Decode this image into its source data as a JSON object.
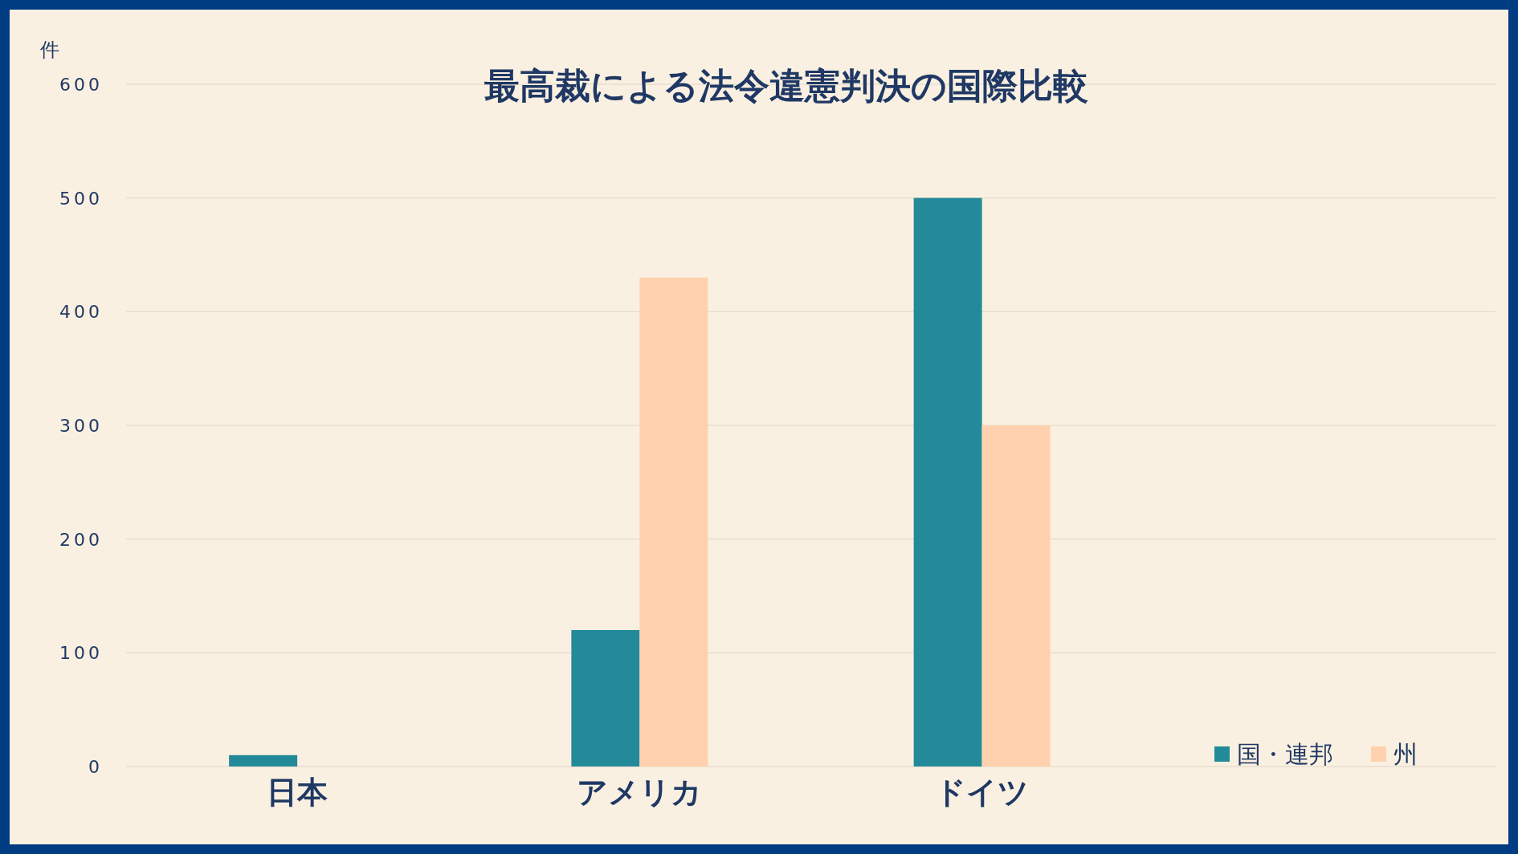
{
  "chart_data": {
    "type": "bar",
    "title": "最高裁による法令違憲判決の国際比較",
    "ylabel": "件",
    "categories": [
      "日本",
      "アメリカ",
      "ドイツ",
      null
    ],
    "series": [
      {
        "name": "国・連邦",
        "color": "#238a99",
        "values": [
          10,
          120,
          500,
          null
        ]
      },
      {
        "name": "州",
        "color": "#ffd1ae",
        "values": [
          null,
          430,
          300,
          null
        ]
      }
    ],
    "ylim": [
      0,
      600
    ],
    "yticks": [
      0,
      100,
      200,
      300,
      400,
      500,
      600
    ],
    "grid": "y",
    "legend": "bottom right"
  }
}
